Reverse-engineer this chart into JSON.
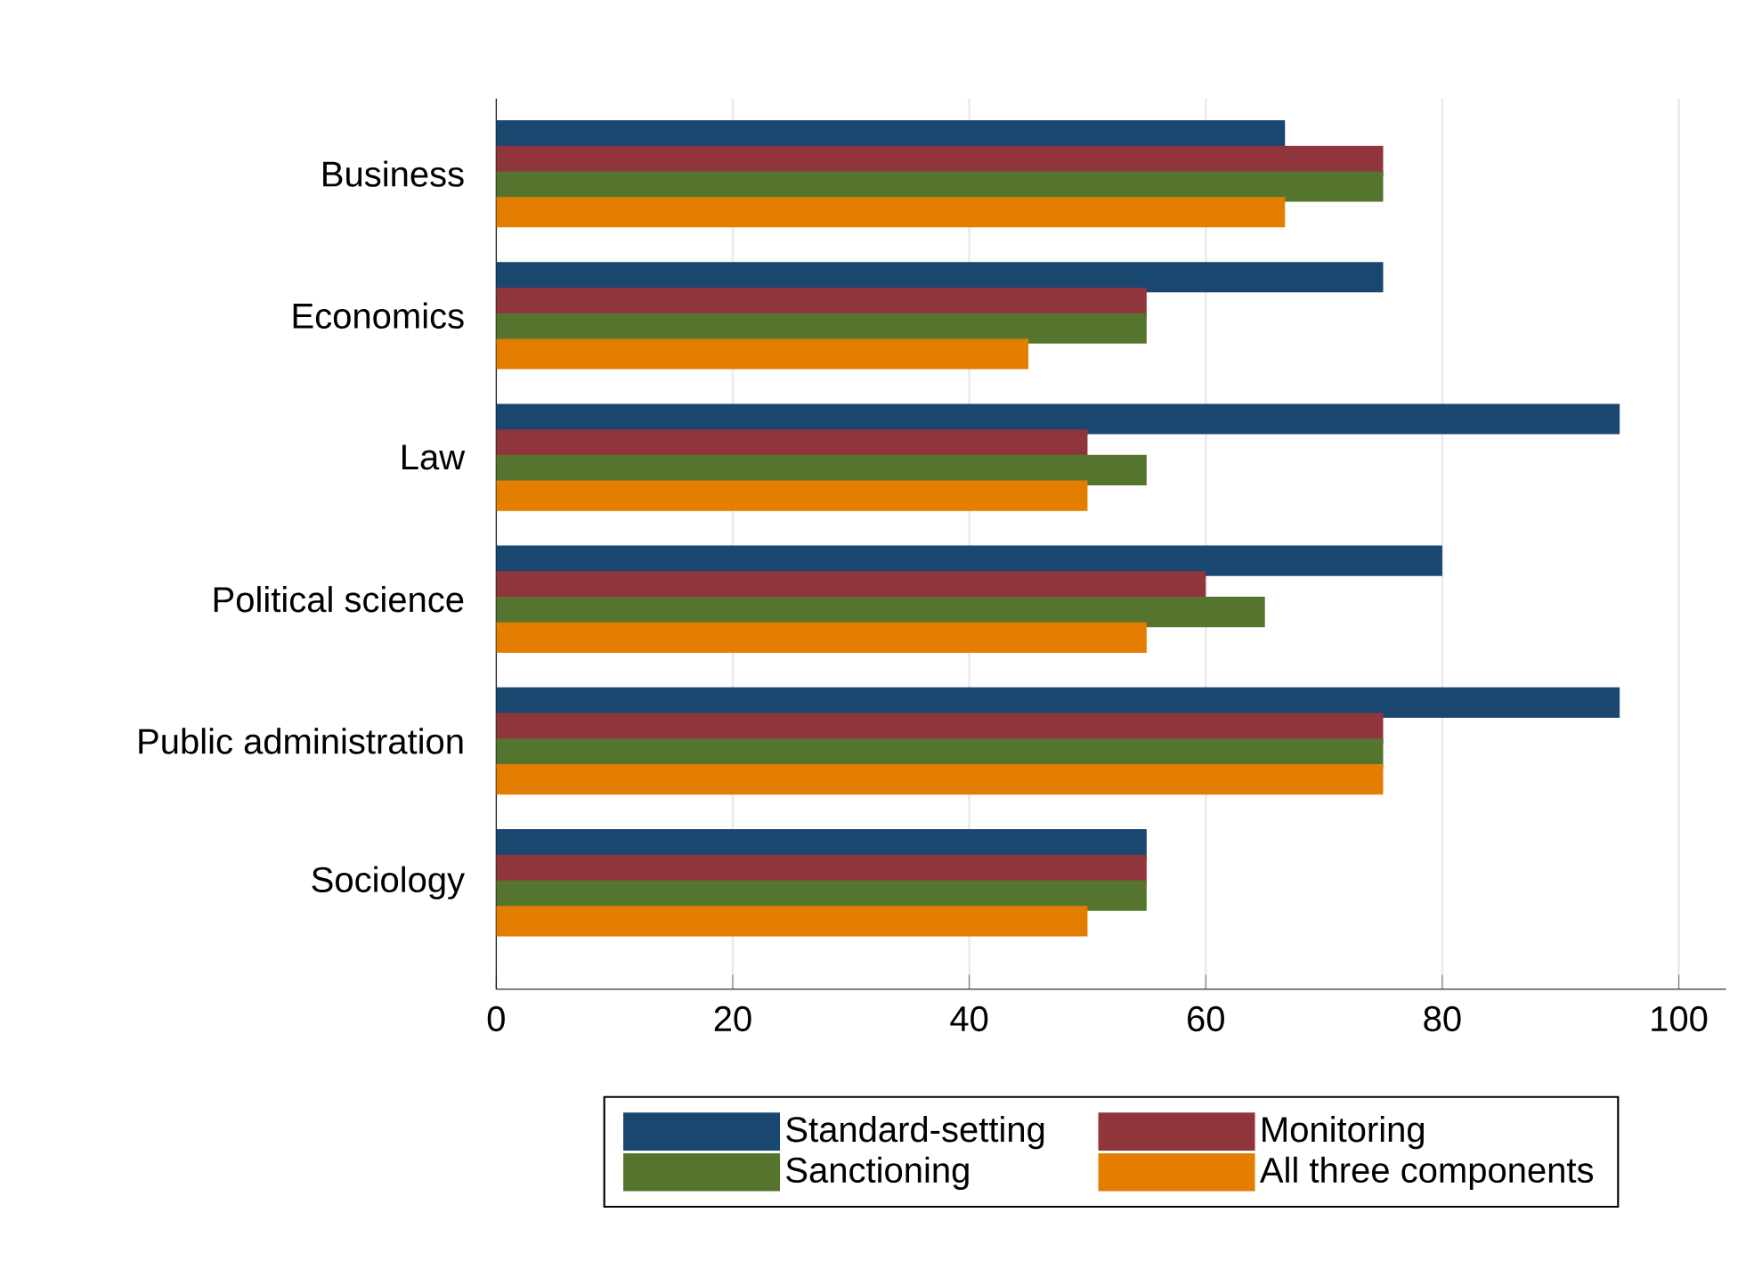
{
  "chart_data": {
    "type": "bar",
    "orientation": "horizontal",
    "categories": [
      "Business",
      "Economics",
      "Law",
      "Political science",
      "Public administration",
      "Sociology"
    ],
    "series": [
      {
        "name": "Standard-setting",
        "color": "#1a476f",
        "values": [
          66.7,
          75,
          95,
          80,
          95,
          55
        ]
      },
      {
        "name": "Monitoring",
        "color": "#90353b",
        "values": [
          75,
          55,
          50,
          60,
          75,
          55
        ]
      },
      {
        "name": "Sanctioning",
        "color": "#55752f",
        "values": [
          75,
          55,
          55,
          65,
          75,
          55
        ]
      },
      {
        "name": "All three components",
        "color": "#e37e00",
        "values": [
          66.7,
          45,
          50,
          55,
          75,
          50
        ]
      }
    ],
    "xlim": [
      0,
      104
    ],
    "xticks": [
      0,
      20,
      40,
      60,
      80,
      100
    ],
    "grid": "x",
    "legend": "bottom"
  }
}
